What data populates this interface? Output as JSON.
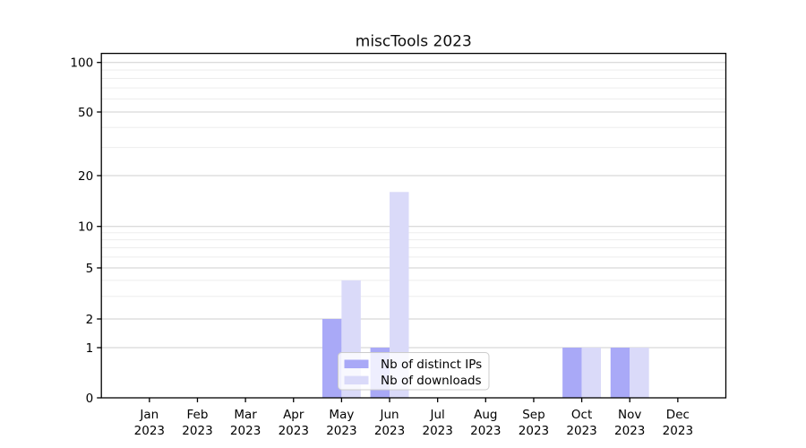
{
  "figure": {
    "title": "miscTools 2023"
  },
  "legend": {
    "items": [
      {
        "label": "Nb of distinct IPs",
        "color": "#a9a9f7"
      },
      {
        "label": "Nb of downloads",
        "color": "#dadaf9"
      }
    ]
  },
  "y_axis": {
    "tick_labels": [
      "0",
      "1",
      "2",
      "5",
      "10",
      "20",
      "50",
      "100"
    ]
  },
  "x_axis": {
    "tick_labels": [
      "Jan 2023",
      "Feb 2023",
      "Mar 2023",
      "Apr 2023",
      "May 2023",
      "Jun 2023",
      "Jul 2023",
      "Aug 2023",
      "Sep 2023",
      "Oct 2023",
      "Nov 2023",
      "Dec 2023"
    ]
  },
  "chart_data": {
    "type": "bar",
    "title": "miscTools 2023",
    "categories": [
      "Jan 2023",
      "Feb 2023",
      "Mar 2023",
      "Apr 2023",
      "May 2023",
      "Jun 2023",
      "Jul 2023",
      "Aug 2023",
      "Sep 2023",
      "Oct 2023",
      "Nov 2023",
      "Dec 2023"
    ],
    "series": [
      {
        "name": "Nb of distinct IPs",
        "color": "#a9a9f7",
        "values": [
          0,
          0,
          0,
          0,
          2,
          1,
          0,
          0,
          0,
          1,
          1,
          0
        ]
      },
      {
        "name": "Nb of downloads",
        "color": "#dadaf9",
        "values": [
          0,
          0,
          0,
          0,
          4,
          16,
          0,
          0,
          0,
          1,
          1,
          0
        ]
      }
    ],
    "xlabel": "",
    "ylabel": "",
    "yscale": "symlog",
    "y_major_ticks": [
      0,
      1,
      2,
      5,
      10,
      20,
      50,
      100
    ],
    "y_minor_ticks": [
      3,
      4,
      6,
      7,
      8,
      9,
      30,
      40,
      60,
      70,
      80,
      90
    ],
    "ylim": [
      0,
      115
    ],
    "grid": true,
    "legend_position": "inside bottom-center"
  }
}
